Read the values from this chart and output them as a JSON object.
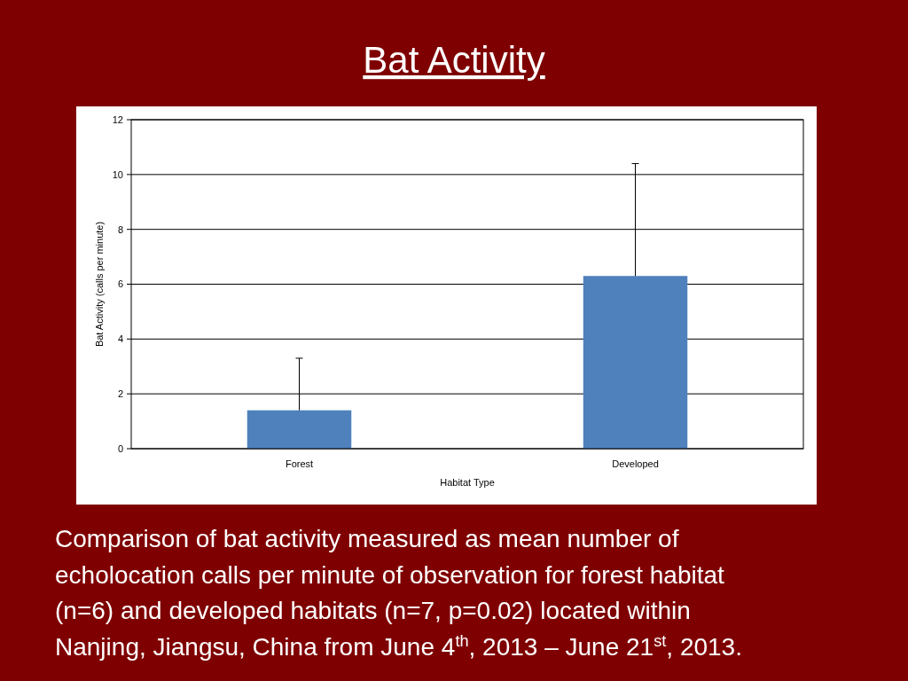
{
  "chart_data": {
    "type": "bar",
    "title": "Bat Activity",
    "xlabel": "Habitat Type",
    "ylabel": "Bat Activity (calls per minute)",
    "categories": [
      "Forest",
      "Developed"
    ],
    "values": [
      1.4,
      6.3
    ],
    "errors": [
      [
        1.4,
        3.3
      ],
      [
        6.3,
        10.4
      ]
    ],
    "color": "#4f81bd",
    "ylim": [
      0,
      12
    ],
    "yticks": [
      0,
      2,
      4,
      6,
      8,
      10,
      12
    ],
    "grid": "y",
    "annotations": [
      "Comparison of bat activity measured as mean number of echolocation calls per minute of observation for forest habitat (n=6) and developed habitats (n=7, p=0.02) located within Nanjing, Jiangsu, China from June 4$^{th}$, 2013 – June 21$^{st}$, 2013."
    ]
  }
}
